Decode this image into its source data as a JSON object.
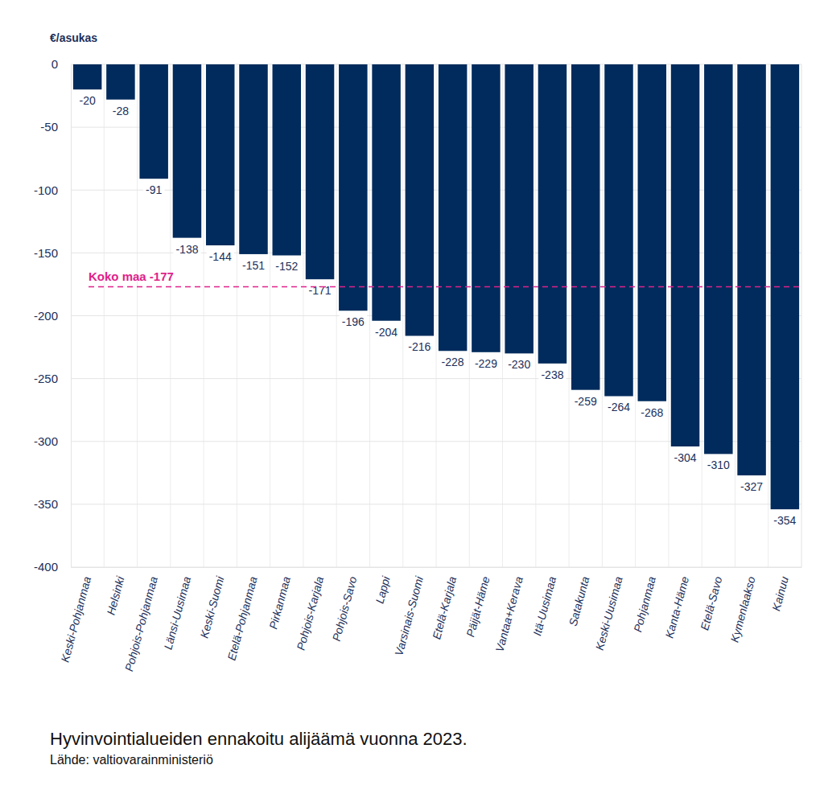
{
  "chart_data": {
    "type": "bar",
    "title": "Hyvinvointialueiden ennakoitu alijäämä vuonna 2023.",
    "subtitle": "Lähde: valtiovarainministeriö",
    "y_label": "€/asukas",
    "categories": [
      "Keski-Pohjanmaa",
      "Helsinki",
      "Pohjois-Pohjanmaa",
      "Länsi-Uusimaa",
      "Keski-Suomi",
      "Etelä-Pohjanmaa",
      "Pirkanmaa",
      "Pohjois-Karjala",
      "Pohjois-Savo",
      "Lappi",
      "Varsinais-Suomi",
      "Etelä-Karjala",
      "Päijät-Häme",
      "Vantaa+Kerava",
      "Itä-Uusimaa",
      "Satakunta",
      "Keski-Uusimaa",
      "Pohjanmaa",
      "Kanta-Häme",
      "Etelä-Savo",
      "Kymenlaakso",
      "Kainuu"
    ],
    "values": [
      -20,
      -28,
      -91,
      -138,
      -144,
      -151,
      -152,
      -171,
      -196,
      -204,
      -216,
      -228,
      -229,
      -230,
      -238,
      -259,
      -264,
      -268,
      -304,
      -310,
      -327,
      -354
    ],
    "color": "#002b5c",
    "ylim": [
      -400,
      0
    ],
    "yticks": [
      0,
      -50,
      -100,
      -150,
      -200,
      -250,
      -300,
      -350,
      -400
    ],
    "grid": true,
    "data_labels": true,
    "reference_line": {
      "label": "Koko maa -177",
      "value": -177,
      "color": "#e0218a",
      "line_style": "dashed"
    }
  }
}
